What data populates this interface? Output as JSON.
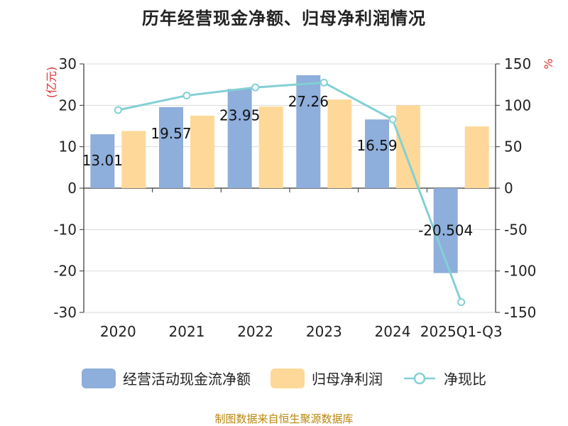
{
  "title": "历年经营现金净额、归母净利润情况",
  "source": "制图数据来自恒生聚源数据库",
  "legend": {
    "cash_flow": "经营活动现金流净额",
    "net_profit": "归母净利润",
    "ratio": "净现比"
  },
  "colors": {
    "cash_flow": "#8eaedb",
    "net_profit": "#fdd899",
    "ratio": "#82d0d4",
    "axis_unit": "#e03030",
    "source": "#b8860b"
  },
  "chart_data": {
    "type": "bar",
    "categories": [
      "2020",
      "2021",
      "2022",
      "2023",
      "2024",
      "2025Q1-Q3"
    ],
    "left_axis": {
      "unit": "(亿元)",
      "ylim": [
        -30,
        30
      ],
      "ticks": [
        30,
        20,
        10,
        0,
        -10,
        -20,
        -30
      ]
    },
    "right_axis": {
      "unit": "%",
      "ylim": [
        -150,
        150
      ],
      "ticks": [
        150,
        100,
        50,
        0,
        -50,
        -100,
        -150
      ]
    },
    "series": [
      {
        "name": "经营活动现金流净额",
        "type": "bar",
        "axis": "left",
        "values": [
          13.01,
          19.57,
          23.95,
          27.26,
          16.59,
          -20.504
        ],
        "labels": [
          "13.01",
          "19.57",
          "23.95",
          "27.26",
          "16.59",
          "-20.504"
        ]
      },
      {
        "name": "归母净利润",
        "type": "bar",
        "axis": "left",
        "values": [
          13.8,
          17.5,
          19.7,
          21.4,
          20.0,
          14.9
        ]
      },
      {
        "name": "净现比",
        "type": "line",
        "axis": "right",
        "values": [
          94.3,
          111.8,
          121.6,
          127.4,
          82.9,
          -137.6
        ]
      }
    ],
    "grid": true,
    "legend_position": "bottom"
  }
}
